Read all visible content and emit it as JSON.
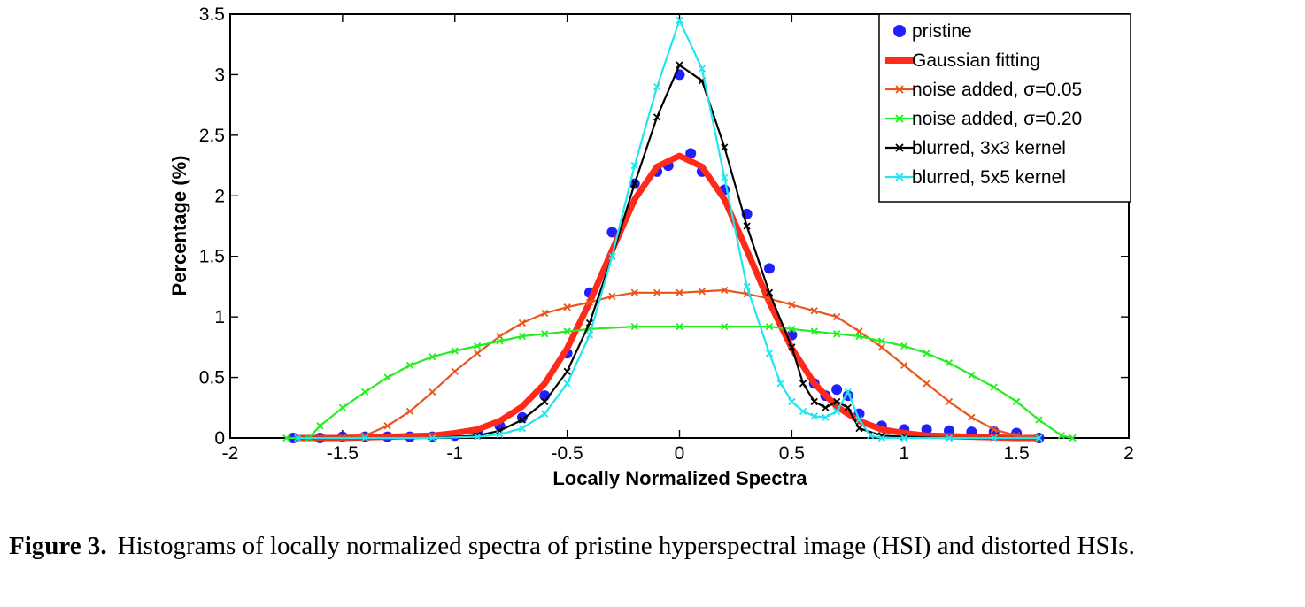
{
  "chart_data": {
    "type": "line",
    "title": "",
    "xlabel": "Locally Normalized Spectra",
    "ylabel": "Percentage (%)",
    "xlim": [
      -2,
      2
    ],
    "ylim": [
      0,
      3.5
    ],
    "xticks": [
      "-2",
      "-1.5",
      "-1",
      "-0.5",
      "0",
      "0.5",
      "1",
      "1.5",
      "2"
    ],
    "yticks": [
      "0",
      "0.5",
      "1",
      "1.5",
      "2",
      "2.5",
      "3",
      "3.5"
    ],
    "legend_position": "top-right",
    "series": [
      {
        "name": "pristine",
        "color": "#1f1fff",
        "marker": "dot",
        "x": [
          -1.72,
          -1.6,
          -1.5,
          -1.4,
          -1.3,
          -1.2,
          -1.1,
          -1.0,
          -0.9,
          -0.8,
          -0.7,
          -0.6,
          -0.5,
          -0.4,
          -0.3,
          -0.2,
          -0.1,
          -0.05,
          0,
          0.05,
          0.1,
          0.2,
          0.3,
          0.4,
          0.5,
          0.6,
          0.65,
          0.7,
          0.75,
          0.8,
          0.9,
          1.0,
          1.1,
          1.2,
          1.3,
          1.4,
          1.5,
          1.6
        ],
        "y": [
          0.0,
          0.0,
          0.01,
          0.01,
          0.01,
          0.01,
          0.01,
          0.02,
          0.05,
          0.1,
          0.17,
          0.35,
          0.7,
          1.2,
          1.7,
          2.1,
          2.2,
          2.25,
          3.0,
          2.35,
          2.2,
          2.05,
          1.85,
          1.4,
          0.85,
          0.45,
          0.35,
          0.4,
          0.35,
          0.2,
          0.1,
          0.07,
          0.07,
          0.06,
          0.05,
          0.05,
          0.04,
          0.0
        ]
      },
      {
        "name": "Gaussian fitting",
        "color": "#ff2a1a",
        "marker": "none",
        "x": [
          -1.7,
          -1.5,
          -1.3,
          -1.1,
          -1.0,
          -0.9,
          -0.8,
          -0.7,
          -0.6,
          -0.5,
          -0.4,
          -0.3,
          -0.2,
          -0.1,
          0,
          0.1,
          0.2,
          0.3,
          0.4,
          0.5,
          0.6,
          0.7,
          0.8,
          0.9,
          1.0,
          1.1,
          1.3,
          1.5,
          1.6
        ],
        "y": [
          0.0,
          0.0,
          0.01,
          0.02,
          0.04,
          0.07,
          0.14,
          0.26,
          0.45,
          0.74,
          1.12,
          1.55,
          1.97,
          2.24,
          2.33,
          2.24,
          1.97,
          1.55,
          1.12,
          0.74,
          0.45,
          0.26,
          0.14,
          0.07,
          0.04,
          0.02,
          0.01,
          0.0,
          0.0
        ]
      },
      {
        "name": "noise added, σ=0.05",
        "color": "#e8561e",
        "marker": "x",
        "x": [
          -1.7,
          -1.5,
          -1.4,
          -1.3,
          -1.2,
          -1.1,
          -1.0,
          -0.9,
          -0.8,
          -0.7,
          -0.6,
          -0.5,
          -0.4,
          -0.3,
          -0.2,
          -0.1,
          0,
          0.1,
          0.2,
          0.3,
          0.4,
          0.5,
          0.6,
          0.7,
          0.8,
          0.9,
          1.0,
          1.1,
          1.2,
          1.3,
          1.4,
          1.5,
          1.6
        ],
        "y": [
          0.0,
          0.0,
          0.02,
          0.1,
          0.22,
          0.38,
          0.55,
          0.7,
          0.84,
          0.95,
          1.03,
          1.08,
          1.12,
          1.17,
          1.2,
          1.2,
          1.2,
          1.21,
          1.22,
          1.19,
          1.15,
          1.1,
          1.05,
          1.0,
          0.88,
          0.75,
          0.6,
          0.45,
          0.3,
          0.17,
          0.07,
          0.02,
          0.0
        ]
      },
      {
        "name": "noise added, σ=0.20",
        "color": "#22ee22",
        "marker": "x",
        "x": [
          -1.75,
          -1.65,
          -1.6,
          -1.5,
          -1.4,
          -1.3,
          -1.2,
          -1.1,
          -1.0,
          -0.9,
          -0.8,
          -0.7,
          -0.6,
          -0.5,
          -0.4,
          -0.2,
          0,
          0.2,
          0.4,
          0.5,
          0.6,
          0.7,
          0.8,
          0.9,
          1.0,
          1.1,
          1.2,
          1.3,
          1.4,
          1.5,
          1.6,
          1.7,
          1.75
        ],
        "y": [
          0.0,
          0.0,
          0.1,
          0.25,
          0.38,
          0.5,
          0.6,
          0.67,
          0.72,
          0.76,
          0.8,
          0.84,
          0.86,
          0.88,
          0.9,
          0.92,
          0.92,
          0.92,
          0.92,
          0.9,
          0.88,
          0.86,
          0.84,
          0.8,
          0.76,
          0.7,
          0.62,
          0.52,
          0.42,
          0.3,
          0.15,
          0.02,
          0.0
        ]
      },
      {
        "name": "blurred, 3x3 kernel",
        "color": "#000000",
        "marker": "x",
        "x": [
          -1.7,
          -1.4,
          -1.1,
          -0.9,
          -0.8,
          -0.7,
          -0.6,
          -0.5,
          -0.4,
          -0.3,
          -0.2,
          -0.1,
          0,
          0.1,
          0.2,
          0.3,
          0.4,
          0.5,
          0.55,
          0.6,
          0.65,
          0.7,
          0.75,
          0.8,
          0.9,
          1.0,
          1.2,
          1.4,
          1.6
        ],
        "y": [
          0.0,
          0.0,
          0.0,
          0.02,
          0.06,
          0.15,
          0.3,
          0.55,
          0.95,
          1.5,
          2.1,
          2.65,
          3.08,
          2.95,
          2.4,
          1.75,
          1.2,
          0.75,
          0.45,
          0.3,
          0.25,
          0.3,
          0.25,
          0.08,
          0.02,
          0.01,
          0.0,
          0.0,
          0.0
        ]
      },
      {
        "name": "blurred, 5x5 kernel",
        "color": "#22e5ee",
        "marker": "x",
        "x": [
          -1.7,
          -1.4,
          -1.1,
          -0.9,
          -0.8,
          -0.7,
          -0.6,
          -0.5,
          -0.4,
          -0.3,
          -0.2,
          -0.1,
          0,
          0.1,
          0.2,
          0.3,
          0.4,
          0.45,
          0.5,
          0.55,
          0.6,
          0.65,
          0.7,
          0.75,
          0.8,
          0.85,
          0.9,
          1.0,
          1.2,
          1.4,
          1.6
        ],
        "y": [
          0.0,
          0.0,
          0.0,
          0.01,
          0.03,
          0.08,
          0.2,
          0.45,
          0.85,
          1.5,
          2.25,
          2.9,
          3.45,
          3.05,
          2.15,
          1.25,
          0.7,
          0.45,
          0.3,
          0.22,
          0.18,
          0.17,
          0.22,
          0.38,
          0.15,
          0.02,
          0.0,
          0.0,
          0.0,
          0.0,
          0.0
        ]
      }
    ]
  },
  "caption": {
    "label": "Figure 3.",
    "text": "Histograms of locally normalized spectra of pristine hyperspectral image (HSI) and distorted HSIs."
  }
}
